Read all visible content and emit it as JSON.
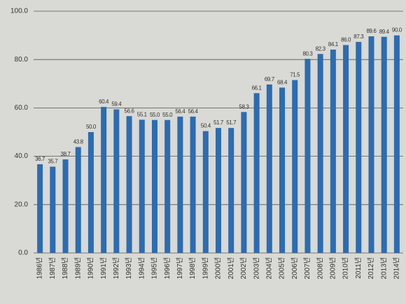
{
  "chart_data": {
    "type": "bar",
    "categories": [
      "1986년",
      "1987년",
      "1988년",
      "1989년",
      "1990년",
      "1991년",
      "1992년",
      "1993년",
      "1994년",
      "1995년",
      "1996년",
      "1997년",
      "1998년",
      "1999년",
      "2000년",
      "2001년",
      "2002년",
      "2003년",
      "2004년",
      "2005년",
      "2006년",
      "2007년",
      "2008년",
      "2009년",
      "2010년",
      "2011년",
      "2012년",
      "2013년",
      "2014년"
    ],
    "values": [
      36.7,
      35.7,
      38.7,
      43.8,
      50.0,
      60.4,
      59.4,
      56.6,
      55.1,
      55.0,
      55.0,
      56.4,
      56.4,
      50.4,
      51.7,
      51.7,
      58.3,
      66.1,
      69.7,
      68.4,
      71.5,
      80.3,
      82.3,
      84.1,
      86.0,
      87.3,
      89.6,
      89.4,
      90.0
    ],
    "value_labels": [
      "36.7",
      "35.7",
      "38.7",
      "43.8",
      "50.0",
      "60.4",
      "59.4",
      "56.6",
      "55.1",
      "55.0",
      "55.0",
      "56.4",
      "56.4",
      "50.4",
      "51.7",
      "51.7",
      "58.3",
      "66.1",
      "69.7",
      "68.4",
      "71.5",
      "80.3",
      "82.3",
      "84.1",
      "86.0",
      "87.3",
      "89.6",
      "89.4",
      "90.0"
    ],
    "color": "#2b6cb3",
    "ylim": [
      0,
      100
    ],
    "yticks": [
      {
        "value": 0,
        "label": "0.0"
      },
      {
        "value": 20,
        "label": "20.0"
      },
      {
        "value": 40,
        "label": "40.0"
      },
      {
        "value": 60,
        "label": "60.0"
      },
      {
        "value": 80,
        "label": "80.0"
      },
      {
        "value": 100,
        "label": "100.0"
      }
    ],
    "grid": true
  }
}
